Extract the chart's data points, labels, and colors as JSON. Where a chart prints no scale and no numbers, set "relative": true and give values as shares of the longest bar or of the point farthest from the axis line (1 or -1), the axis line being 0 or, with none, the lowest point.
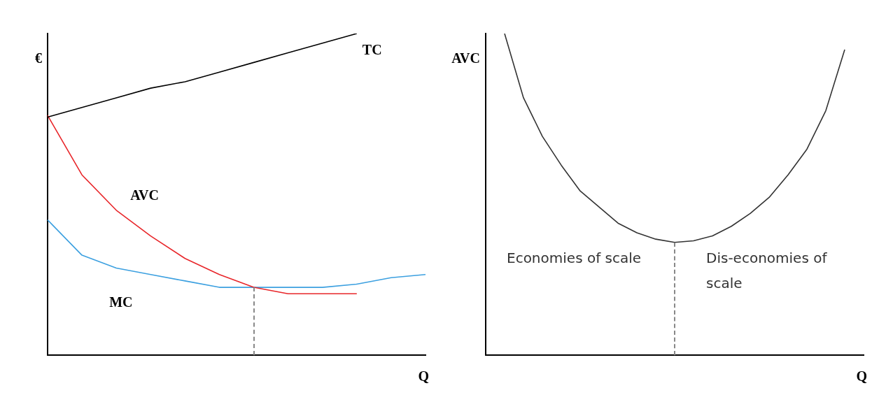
{
  "chart_data": [
    {
      "type": "line",
      "relative": true,
      "xlabel": "Q",
      "ylabel": "€",
      "categories": [
        null,
        null,
        null,
        null,
        null,
        null,
        null,
        null,
        null,
        null,
        null,
        null
      ],
      "grid": false,
      "legend": false,
      "marker": "none",
      "series": [
        {
          "name": "TC",
          "color": "#000000",
          "values": [
            0.74,
            0.77,
            0.8,
            0.83,
            0.85,
            0.88,
            0.91,
            0.94,
            0.97,
            1,
            null,
            null
          ]
        },
        {
          "name": "AVC",
          "color": "#e8262a",
          "values": [
            0.745,
            0.56,
            0.45,
            0.37,
            0.3,
            0.25,
            0.21,
            0.19,
            0.19,
            0.19,
            null,
            null
          ]
        },
        {
          "name": "MC",
          "color": "#3ca0e0",
          "values": [
            0.42,
            0.31,
            0.27,
            0.25,
            0.23,
            0.21,
            0.21,
            0.21,
            0.21,
            0.22,
            0.24,
            0.25
          ]
        }
      ]
    },
    {
      "type": "line",
      "relative": true,
      "xlabel": "Q",
      "ylabel": "AVC",
      "categories": [
        null,
        null,
        null,
        null,
        null,
        null,
        null,
        null,
        null,
        null,
        null,
        null,
        null,
        null,
        null,
        null,
        null,
        null,
        null,
        null,
        null
      ],
      "grid": false,
      "legend": false,
      "marker": "none",
      "annotations": [
        "Economies of scale",
        "Dis-economies of scale"
      ],
      "series": [
        {
          "color": "#333333",
          "values": [
            null,
            1,
            0.8,
            0.68,
            0.59,
            0.51,
            0.46,
            0.41,
            0.38,
            0.36,
            0.35,
            0.355,
            0.37,
            0.4,
            0.44,
            0.49,
            0.56,
            0.64,
            0.76,
            0.95,
            null
          ]
        }
      ]
    }
  ]
}
